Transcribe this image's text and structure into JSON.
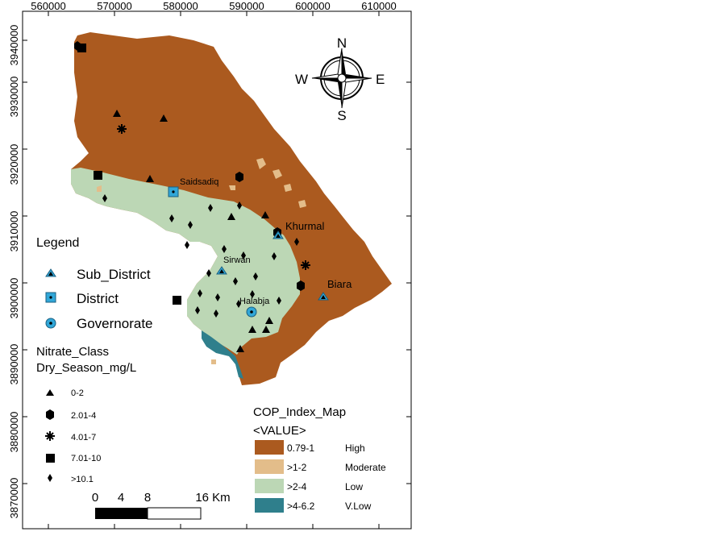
{
  "map": {
    "x_ticks": [
      "560000",
      "570000",
      "580000",
      "590000",
      "600000",
      "610000"
    ],
    "y_ticks": [
      "3940000",
      "3930000",
      "3920000",
      "3910000",
      "3900000",
      "3890000",
      "3880000",
      "3870000"
    ],
    "places": {
      "saidsadiq": "Saidsadiq",
      "khurmal": "Khurmal",
      "sirwan": "Sirwan",
      "biara": "Biara",
      "halabja": "Halabja"
    },
    "compass": {
      "n": "N",
      "s": "S",
      "e": "E",
      "w": "W"
    }
  },
  "legend": {
    "title": "Legend",
    "admin": [
      {
        "icon": "sub-district-triangle-icon",
        "label": "Sub_District"
      },
      {
        "icon": "district-square-icon",
        "label": "District"
      },
      {
        "icon": "governorate-circle-icon",
        "label": "Governorate"
      }
    ],
    "nitrate_title_1": "Nitrate_Class",
    "nitrate_title_2": "Dry_Season_mg/L",
    "nitrate_classes": [
      {
        "icon": "triangle-icon",
        "label": "0-2"
      },
      {
        "icon": "hexagon-icon",
        "label": "2.01-4"
      },
      {
        "icon": "asterisk-icon",
        "label": "4.01-7"
      },
      {
        "icon": "square-icon",
        "label": "7.01-10"
      },
      {
        "icon": "diamond-icon",
        "label": ">10.1"
      }
    ]
  },
  "cop": {
    "title": "COP_Index_Map",
    "subtitle": "<VALUE>",
    "classes": [
      {
        "range": "0.79-1",
        "label": "High",
        "color": "#ab5a1f"
      },
      {
        "range": ">1-2",
        "label": "Moderate",
        "color": "#e3bd8a"
      },
      {
        "range": ">2-4",
        "label": "Low",
        "color": "#bcd7b5"
      },
      {
        "range": ">4-6.2",
        "label": "V.Low",
        "color": "#2f7f8c"
      }
    ]
  },
  "scale": {
    "labels": [
      "0",
      "4",
      "8",
      "16 Km"
    ]
  }
}
